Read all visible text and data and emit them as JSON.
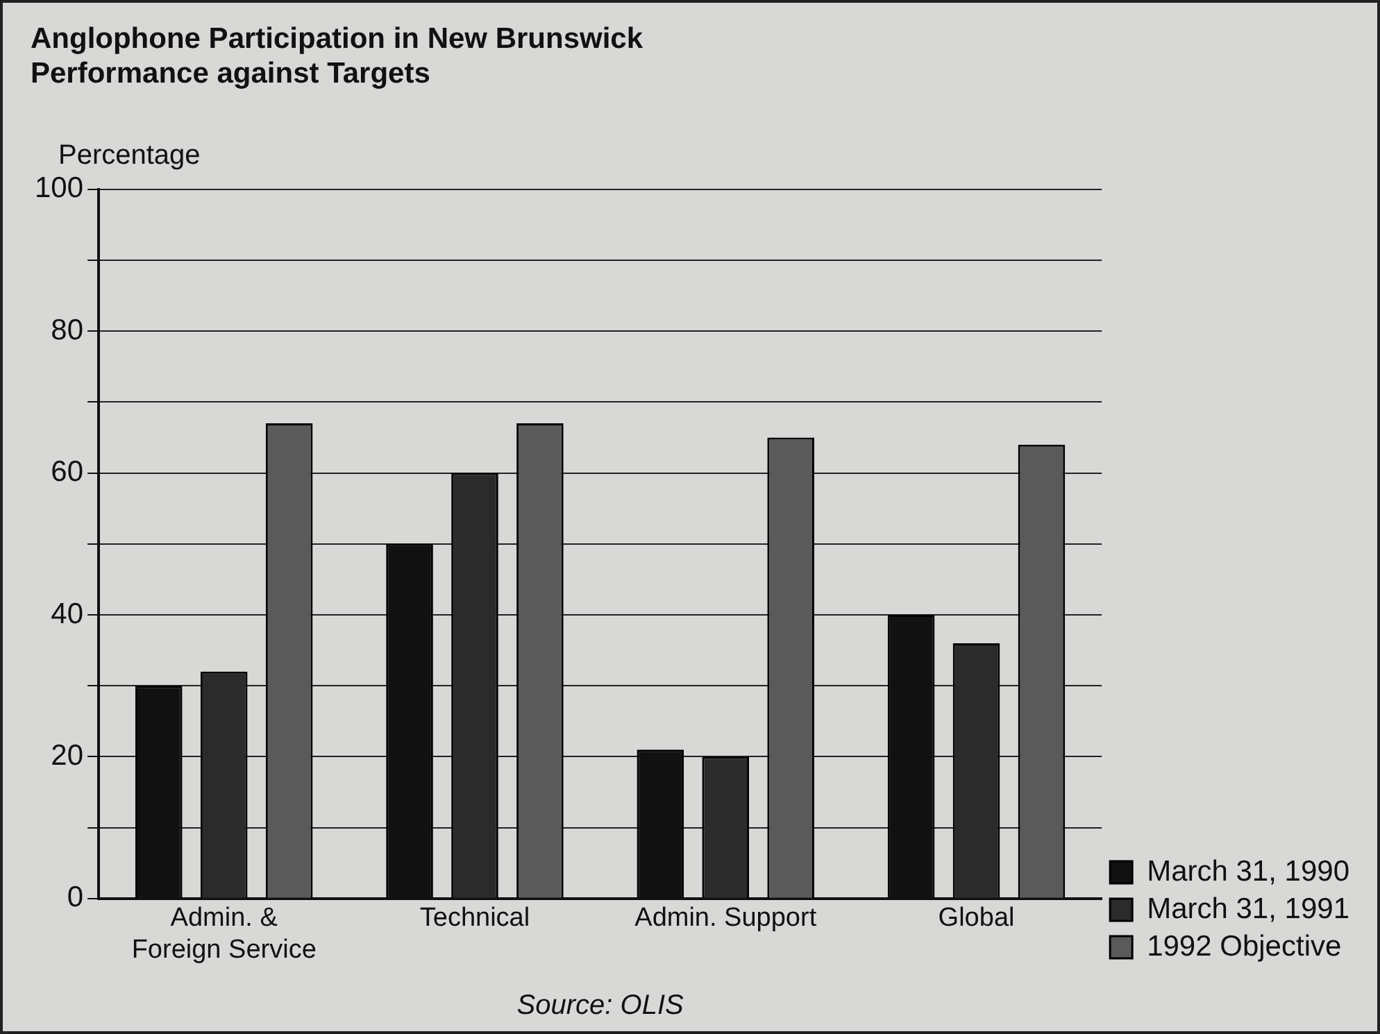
{
  "chart_data": {
    "type": "bar",
    "title": "Anglophone Participation in New Brunswick\nPerformance against Targets",
    "ylabel": "Percentage",
    "categories": [
      "Admin. & Foreign Service",
      "Technical",
      "Admin. Support",
      "Global"
    ],
    "series": [
      {
        "name": "March 31, 1990",
        "color": "#111111",
        "values": [
          30,
          50,
          21,
          40
        ]
      },
      {
        "name": "March 31, 1991",
        "color": "#2b2b2b",
        "values": [
          32,
          60,
          20,
          36
        ]
      },
      {
        "name": "1992 Objective",
        "color": "#5a5a5a",
        "values": [
          67,
          67,
          65,
          64
        ]
      }
    ],
    "ylim": [
      0,
      100
    ],
    "yticks": [
      0,
      {
        "value": 10,
        "label": null
      },
      20,
      {
        "value": 30,
        "label": null
      },
      40,
      {
        "value": 50,
        "label": null
      },
      60,
      {
        "value": 70,
        "label": null
      },
      80,
      {
        "value": 90,
        "label": null
      },
      100
    ],
    "grid": "y",
    "legend": "bottom right",
    "annotations": [
      "Source: OLIS"
    ]
  }
}
